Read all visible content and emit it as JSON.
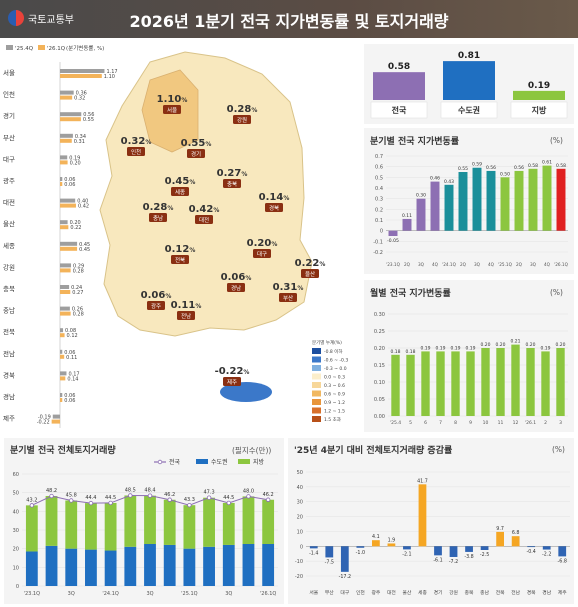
{
  "header": {
    "title": "2026년 1분기 전국 지가변동률 및 토지거래량",
    "logo_text": "국토교통부"
  },
  "colors": {
    "q2025": "#9e9e9e",
    "q2026": "#f3b35a",
    "nation": "#2e8b3c",
    "capital": "#1f6fc1",
    "local": "#8cc63f",
    "purple": "#8d6fb3",
    "teal": "#1a8f9a",
    "red": "#e02020",
    "orange": "#f5a623",
    "blue": "#2f64b3"
  },
  "regional_bars": {
    "legend": [
      "'25.4Q",
      "'26.1Q",
      "(분기변동률, %)"
    ],
    "items": [
      {
        "name": "서울",
        "q25": 1.17,
        "q26": 1.1
      },
      {
        "name": "인천",
        "q25": 0.36,
        "q26": 0.32
      },
      {
        "name": "경기",
        "q25": 0.56,
        "q26": 0.55
      },
      {
        "name": "부산",
        "q25": 0.34,
        "q26": 0.31
      },
      {
        "name": "대구",
        "q25": 0.19,
        "q26": 0.2
      },
      {
        "name": "광주",
        "q25": 0.06,
        "q26": 0.06
      },
      {
        "name": "대전",
        "q25": 0.4,
        "q26": 0.42
      },
      {
        "name": "울산",
        "q25": 0.2,
        "q26": 0.22
      },
      {
        "name": "세종",
        "q25": 0.45,
        "q26": 0.45
      },
      {
        "name": "강원",
        "q25": 0.29,
        "q26": 0.28
      },
      {
        "name": "충북",
        "q25": 0.24,
        "q26": 0.27
      },
      {
        "name": "충남",
        "q25": 0.26,
        "q26": 0.28
      },
      {
        "name": "전북",
        "q25": 0.08,
        "q26": 0.12
      },
      {
        "name": "전남",
        "q25": 0.06,
        "q26": 0.11
      },
      {
        "name": "경북",
        "q25": 0.17,
        "q26": 0.14
      },
      {
        "name": "경남",
        "q25": 0.06,
        "q26": 0.06
      },
      {
        "name": "제주",
        "q25": -0.19,
        "q26": -0.22
      }
    ]
  },
  "map": {
    "labels": [
      {
        "region": "서울",
        "value": "1.10"
      },
      {
        "region": "강원",
        "value": "0.28"
      },
      {
        "region": "인천",
        "value": "0.32"
      },
      {
        "region": "경기",
        "value": "0.55"
      },
      {
        "region": "세종",
        "value": "0.45"
      },
      {
        "region": "충북",
        "value": "0.27"
      },
      {
        "region": "충남",
        "value": "0.28"
      },
      {
        "region": "대전",
        "value": "0.42"
      },
      {
        "region": "경북",
        "value": "0.14"
      },
      {
        "region": "전북",
        "value": "0.12"
      },
      {
        "region": "대구",
        "value": "0.20"
      },
      {
        "region": "울산",
        "value": "0.22"
      },
      {
        "region": "광주",
        "value": "0.06"
      },
      {
        "region": "경남",
        "value": "0.06"
      },
      {
        "region": "전남",
        "value": "0.11"
      },
      {
        "region": "부산",
        "value": "0.31"
      },
      {
        "region": "제주",
        "value": "-0.22"
      }
    ],
    "percent": "%",
    "legend_title": "분기별 누계(%)",
    "legend_items": [
      "-0.8 이하",
      "-0.6 ~ -0.3",
      "-0.3 ~ 0.0",
      "0.0 ~ 0.3",
      "0.3 ~ 0.6",
      "0.6 ~ 0.9",
      "0.9 ~ 1.2",
      "1.2 ~ 1.5",
      "1.5 초과"
    ],
    "legend_colors": [
      "#1c4fa0",
      "#3b78c9",
      "#7fb0e0",
      "#fbeecb",
      "#f7d79a",
      "#f1b860",
      "#e8953a",
      "#d8702a",
      "#b85018"
    ]
  },
  "summary": {
    "items": [
      {
        "name": "전국",
        "value": 0.58
      },
      {
        "name": "수도권",
        "value": 0.81
      },
      {
        "name": "지방",
        "value": 0.19
      }
    ]
  },
  "quarterly_chart": {
    "title": "분기별 전국 지가변동률",
    "unit": "(%)",
    "x_labels": [
      "'23.1Q",
      "2Q",
      "3Q",
      "4Q",
      "'24.1Q",
      "2Q",
      "3Q",
      "4Q",
      "'25.1Q",
      "2Q",
      "3Q",
      "4Q",
      "'26.1Q"
    ],
    "y_ticks": [
      "0.7",
      "0.6",
      "0.5",
      "0.4",
      "0.3",
      "0.2",
      "0.1",
      "0",
      "-0.1",
      "-0.2"
    ]
  },
  "monthly_chart": {
    "title": "월별 전국 지가변동률",
    "unit": "(%)",
    "y_ticks": [
      "0.30",
      "0.25",
      "0.20",
      "0.15",
      "0.10",
      "0.05",
      "0.00"
    ]
  },
  "volume_chart": {
    "title": "분기별 전국 전체토지거래량",
    "unit": "(필지수(만))",
    "legend": [
      "전국",
      "수도권",
      "지방"
    ],
    "y_ticks": [
      "60",
      "50",
      "40",
      "30",
      "20",
      "10",
      "0"
    ],
    "x_labels": [
      "'23.1Q",
      "3Q",
      "'24.1Q",
      "3Q",
      "'25.1Q",
      "3Q",
      "'26.1Q"
    ]
  },
  "change_chart": {
    "title": "'25년 4분기 대비 전체토지거래량 증감률",
    "unit": "(%)",
    "y_ticks": [
      "50",
      "40",
      "30",
      "20",
      "10",
      "0",
      "-10",
      "-20"
    ]
  },
  "chart_data": [
    {
      "type": "bar",
      "title": "분기별 전국 지가변동률",
      "categories": [
        "'23.1Q",
        "2Q",
        "3Q",
        "4Q",
        "'24.1Q",
        "2Q",
        "3Q",
        "4Q",
        "'25.1Q",
        "2Q",
        "3Q",
        "4Q",
        "'26.1Q"
      ],
      "values": [
        -0.05,
        0.11,
        0.3,
        0.46,
        0.43,
        0.55,
        0.59,
        0.56,
        0.5,
        0.56,
        0.58,
        0.61,
        0.58
      ],
      "ylabel": "(%)",
      "ylim": [
        -0.2,
        0.7
      ]
    },
    {
      "type": "bar",
      "title": "월별 전국 지가변동률",
      "categories": [
        "'25.4",
        "5",
        "6",
        "7",
        "8",
        "9",
        "10",
        "11",
        "12",
        "'26.1",
        "2",
        "3"
      ],
      "values": [
        0.18,
        0.18,
        0.19,
        0.19,
        0.19,
        0.19,
        0.2,
        0.2,
        0.21,
        0.2,
        0.19,
        0.2
      ],
      "ylabel": "(%)",
      "ylim": [
        0,
        0.3
      ]
    },
    {
      "type": "bar",
      "title": "분기별 전국 전체토지거래량",
      "categories": [
        "'23.1Q",
        "2Q",
        "3Q",
        "4Q",
        "'24.1Q",
        "2Q",
        "3Q",
        "4Q",
        "'25.1Q",
        "2Q",
        "3Q",
        "4Q",
        "'26.1Q"
      ],
      "series": [
        {
          "name": "수도권",
          "values": [
            18.5,
            21.5,
            20.0,
            19.5,
            19.0,
            21.0,
            22.5,
            22.0,
            20.0,
            21.0,
            22.0,
            22.5,
            22.5
          ]
        },
        {
          "name": "지방",
          "values": [
            24.7,
            26.7,
            25.8,
            24.9,
            25.5,
            27.5,
            25.9,
            24.2,
            23.3,
            26.3,
            22.5,
            25.5,
            23.7
          ]
        },
        {
          "name": "전국",
          "values": [
            43.2,
            48.2,
            45.8,
            44.4,
            44.5,
            48.5,
            48.4,
            46.2,
            43.3,
            47.3,
            44.5,
            48.0,
            46.2
          ]
        }
      ],
      "ylabel": "(필지수(만))",
      "ylim": [
        0,
        60
      ]
    },
    {
      "type": "bar",
      "title": "'25년 4분기 대비 전체토지거래량 증감률",
      "categories": [
        "서울",
        "부산",
        "대구",
        "인천",
        "광주",
        "대전",
        "울산",
        "세종",
        "경기",
        "강원",
        "충북",
        "충남",
        "전북",
        "전남",
        "경북",
        "경남",
        "제주"
      ],
      "values": [
        -1.4,
        -7.5,
        -17.2,
        -1.0,
        4.1,
        1.9,
        -2.1,
        41.7,
        -6.1,
        -7.2,
        -3.8,
        -2.5,
        9.7,
        6.8,
        -0.4,
        -2.2,
        -6.8
      ],
      "ylabel": "(%)",
      "ylim": [
        -20,
        50
      ]
    }
  ]
}
